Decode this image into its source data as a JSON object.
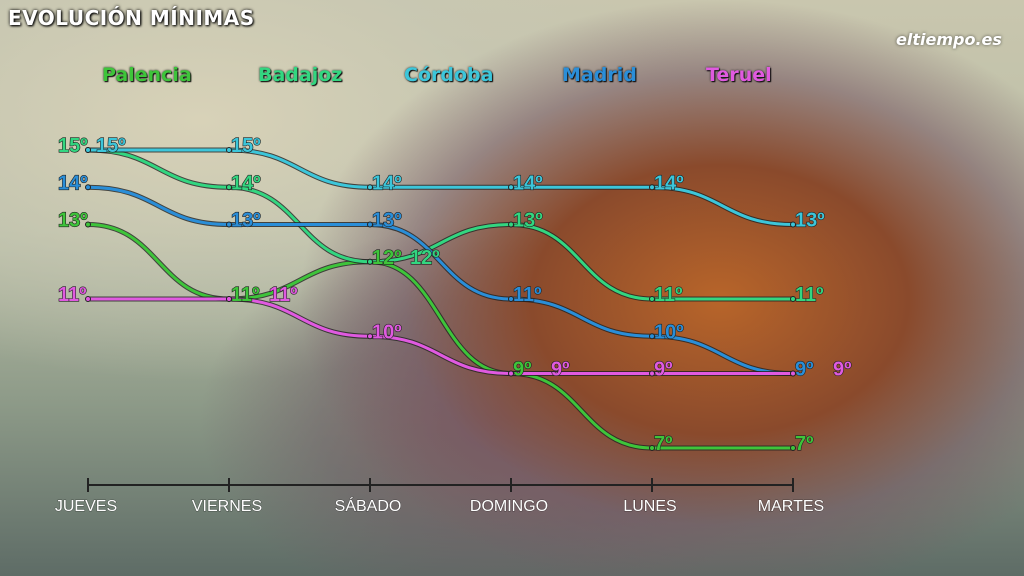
{
  "brand": "eltiempo.es",
  "chart_data": {
    "type": "line",
    "title": "EVOLUCIÓN MÍNIMAS",
    "categories": [
      "JUEVES",
      "VIERNES",
      "SÁBADO",
      "DOMINGO",
      "LUNES",
      "MARTES"
    ],
    "unit": "º",
    "ylim": [
      7,
      15
    ],
    "grid": false,
    "legend": "top",
    "series": [
      {
        "name": "Palencia",
        "color": "#3ec43a",
        "values": [
          13,
          11,
          12,
          9,
          7,
          7
        ]
      },
      {
        "name": "Badajoz",
        "color": "#33d680",
        "values": [
          15,
          14,
          12,
          13,
          11,
          11
        ]
      },
      {
        "name": "Córdoba",
        "color": "#3cc6da",
        "values": [
          15,
          15,
          14,
          14,
          14,
          13
        ]
      },
      {
        "name": "Madrid",
        "color": "#2a8ed8",
        "values": [
          14,
          13,
          13,
          11,
          10,
          9
        ]
      },
      {
        "name": "Teruel",
        "color": "#e05ae0",
        "values": [
          11,
          11,
          10,
          9,
          9,
          9
        ]
      }
    ]
  }
}
